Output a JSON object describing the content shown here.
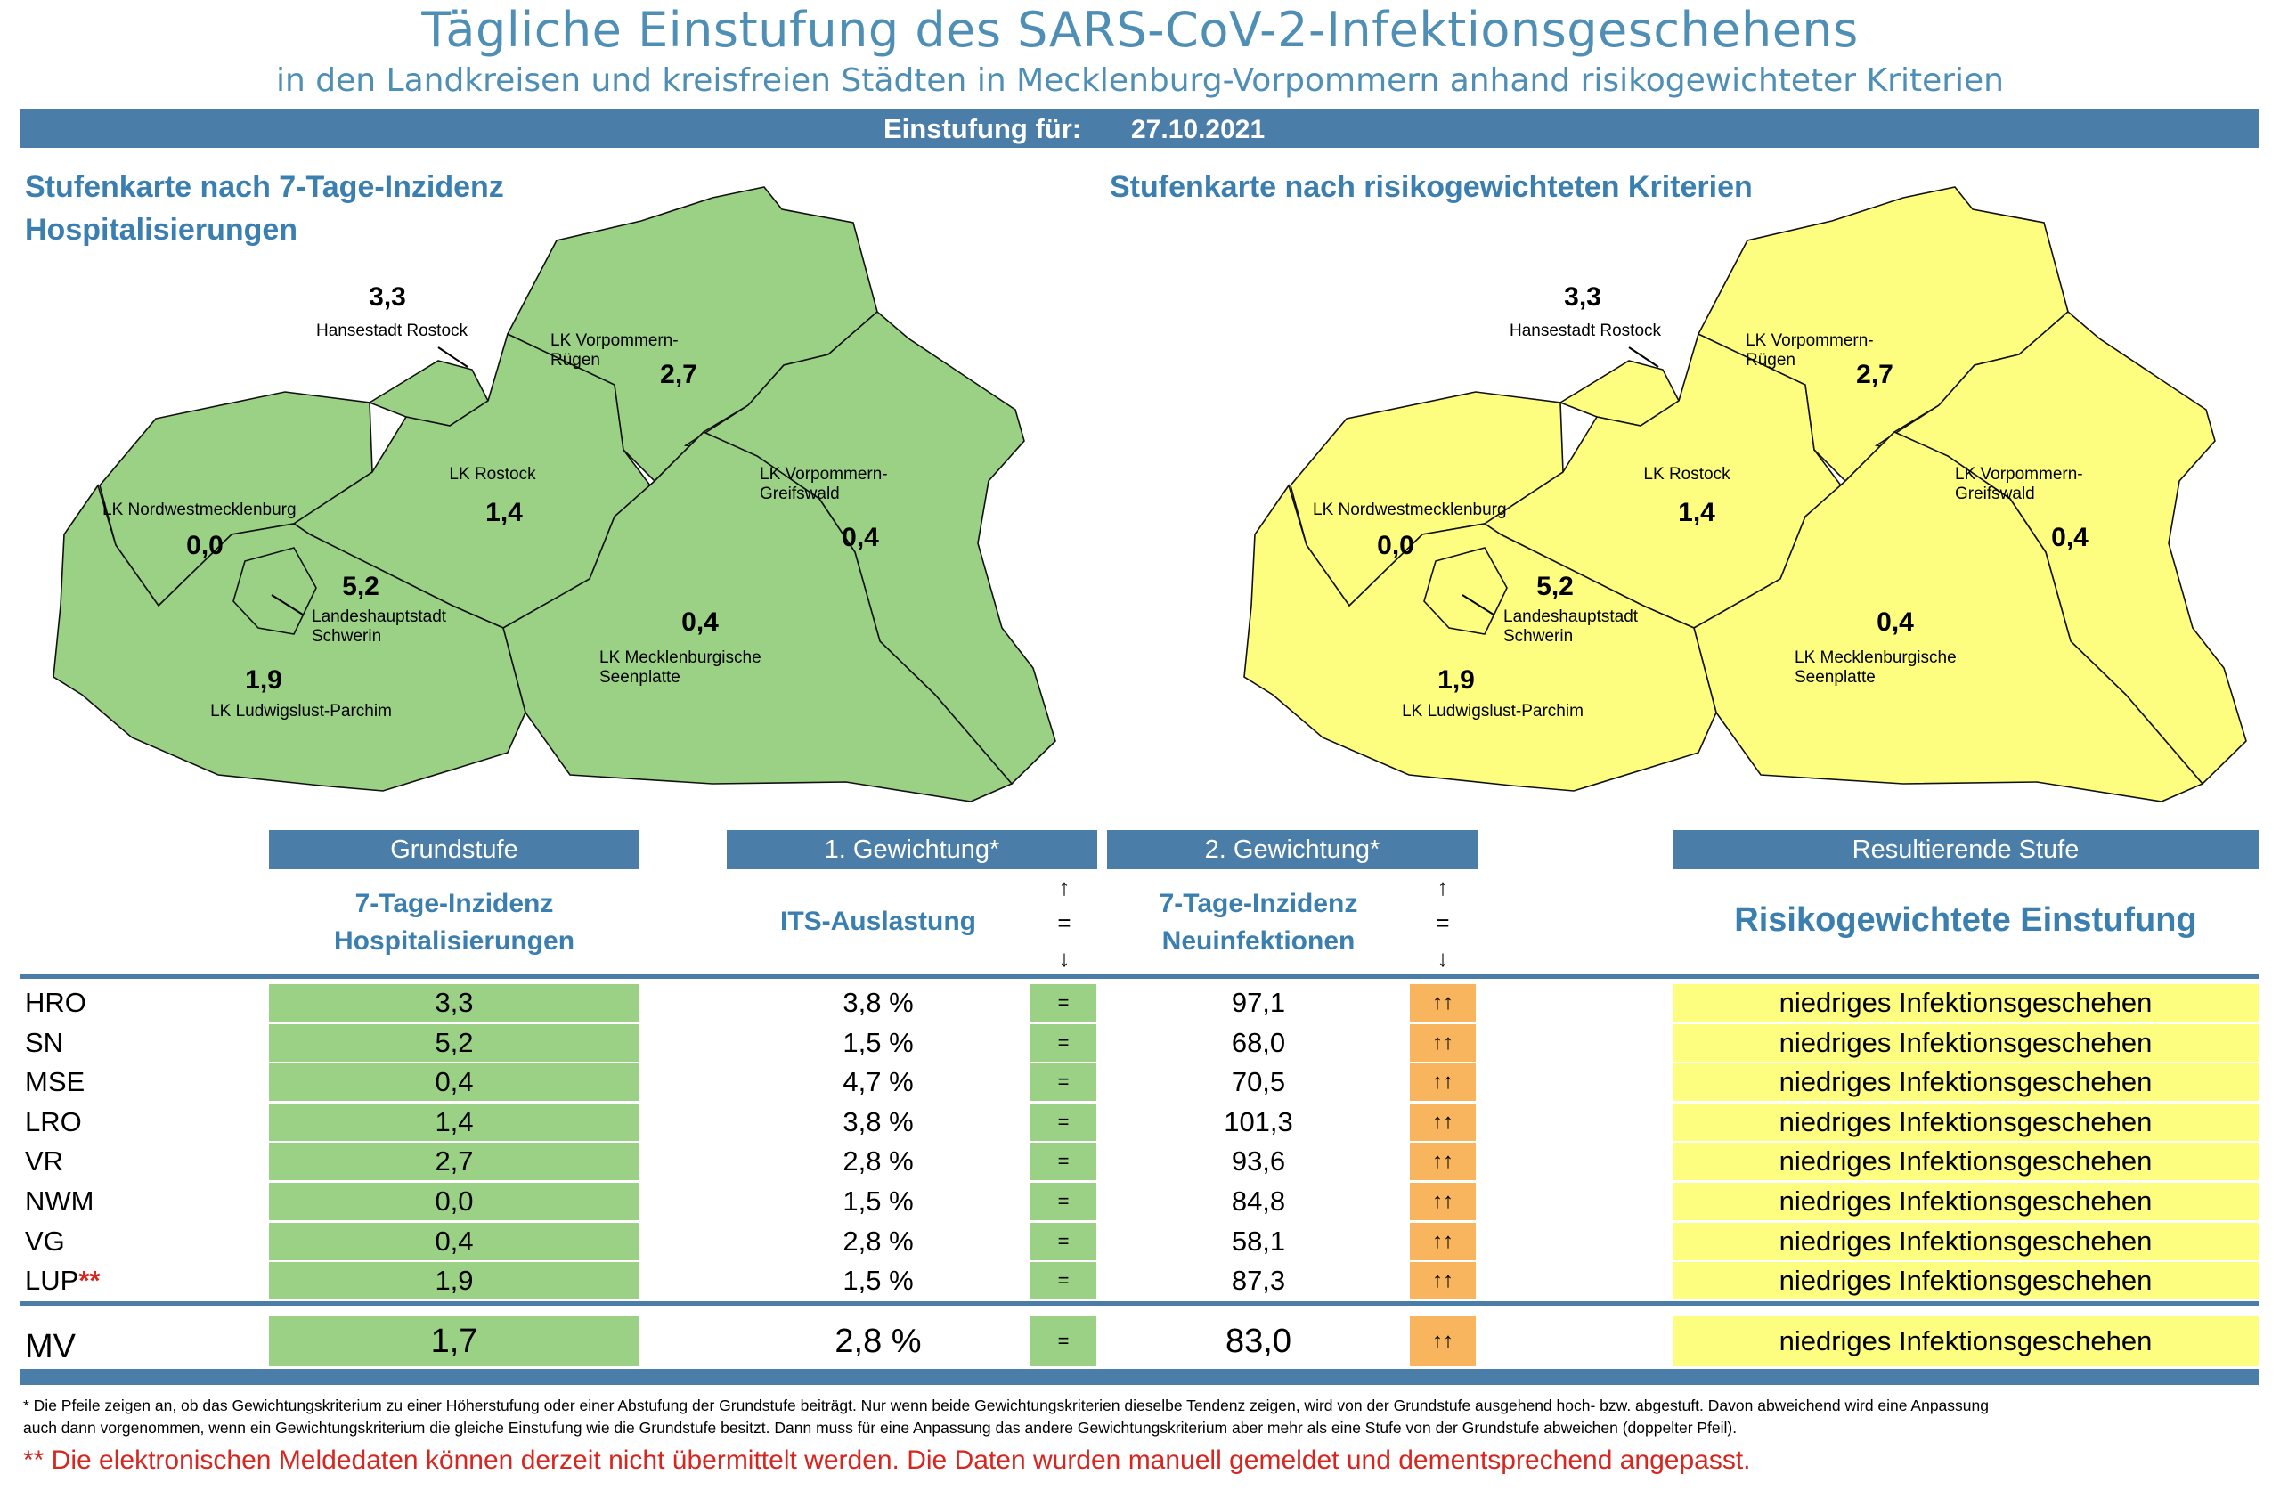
{
  "header": {
    "title": "Tägliche Einstufung des SARS-CoV-2-Infektionsgeschehens",
    "subtitle": "in den Landkreisen und kreisfreien Städten in Mecklenburg-Vorpommern anhand risikogewichteter Kriterien",
    "date_label": "Einstufung für:",
    "date_value": "27.10.2021"
  },
  "map_left": {
    "title_line1": "Stufenkarte nach 7-Tage-Inzidenz",
    "title_line2": "Hospitalisierungen",
    "fill": "#9ad185"
  },
  "map_right": {
    "title_line1": "Stufenkarte nach risikogewichteten Kriterien",
    "fill": "#fdfd80"
  },
  "regions": {
    "hro": {
      "name": "Hansestadt Rostock",
      "value": "3,3"
    },
    "vr": {
      "name_line1": "LK Vorpommern-",
      "name_line2": "Rügen",
      "value": "2,7"
    },
    "lro": {
      "name": "LK Rostock",
      "value": "1,4"
    },
    "vg": {
      "name_line1": "LK Vorpommern-",
      "name_line2": "Greifswald",
      "value": "0,4"
    },
    "nwm": {
      "name": "LK Nordwestmecklenburg",
      "value": "0,0"
    },
    "sn": {
      "name_line1": "Landeshauptstadt",
      "name_line2": "Schwerin",
      "value": "5,2"
    },
    "mse": {
      "name_line1": "LK Mecklenburgische",
      "name_line2": "Seenplatte",
      "value": "0,4"
    },
    "lup": {
      "name": "LK Ludwigslust-Parchim",
      "value": "1,9"
    }
  },
  "table": {
    "headers": {
      "grundstufe": "Grundstufe",
      "gewichtung1": "1. Gewichtung*",
      "gewichtung2": "2. Gewichtung*",
      "resultierend": "Resultierende Stufe"
    },
    "subheaders": {
      "grund_line1": "7-Tage-Inzidenz",
      "grund_line2": "Hospitalisierungen",
      "its": "ITS-Auslastung",
      "neu_line1": "7-Tage-Inzidenz",
      "neu_line2": "Neuinfektionen",
      "risk": "Risikogewichtete Einstufung"
    },
    "arrows": {
      "up": "↑",
      "eq": "=",
      "down": "↓"
    },
    "rows": [
      {
        "code": "HRO",
        "marker": "",
        "grund": "3,3",
        "its": "3,8 %",
        "its_trend": "=",
        "neu": "97,1",
        "neu_trend": "↑↑",
        "result": "niedriges Infektionsgeschehen"
      },
      {
        "code": "SN",
        "marker": "",
        "grund": "5,2",
        "its": "1,5 %",
        "its_trend": "=",
        "neu": "68,0",
        "neu_trend": "↑↑",
        "result": "niedriges Infektionsgeschehen"
      },
      {
        "code": "MSE",
        "marker": "",
        "grund": "0,4",
        "its": "4,7 %",
        "its_trend": "=",
        "neu": "70,5",
        "neu_trend": "↑↑",
        "result": "niedriges Infektionsgeschehen"
      },
      {
        "code": "LRO",
        "marker": "",
        "grund": "1,4",
        "its": "3,8 %",
        "its_trend": "=",
        "neu": "101,3",
        "neu_trend": "↑↑",
        "result": "niedriges Infektionsgeschehen"
      },
      {
        "code": "VR",
        "marker": "",
        "grund": "2,7",
        "its": "2,8 %",
        "its_trend": "=",
        "neu": "93,6",
        "neu_trend": "↑↑",
        "result": "niedriges Infektionsgeschehen"
      },
      {
        "code": "NWM",
        "marker": "",
        "grund": "0,0",
        "its": "1,5 %",
        "its_trend": "=",
        "neu": "84,8",
        "neu_trend": "↑↑",
        "result": "niedriges Infektionsgeschehen"
      },
      {
        "code": "VG",
        "marker": "",
        "grund": "0,4",
        "its": "2,8 %",
        "its_trend": "=",
        "neu": "58,1",
        "neu_trend": "↑↑",
        "result": "niedriges Infektionsgeschehen"
      },
      {
        "code": "LUP",
        "marker": "**",
        "grund": "1,9",
        "its": "1,5 %",
        "its_trend": "=",
        "neu": "87,3",
        "neu_trend": "↑↑",
        "result": "niedriges Infektionsgeschehen"
      }
    ],
    "total": {
      "code": "MV",
      "grund": "1,7",
      "its": "2,8 %",
      "its_trend": "=",
      "neu": "83,0",
      "neu_trend": "↑↑",
      "result": "niedriges Infektionsgeschehen"
    }
  },
  "footer": {
    "note_line1": "* Die Pfeile zeigen an, ob das Gewichtungskriterium zu einer Höherstufung oder einer Abstufung der Grundstufe beiträgt. Nur wenn beide Gewichtungskriterien dieselbe Tendenz zeigen, wird von der Grundstufe ausgehend hoch- bzw. abgestuft.  Davon abweichend wird eine Anpassung",
    "note_line2": "auch dann vorgenommen, wenn ein Gewichtungskriterium die gleiche Einstufung wie die Grundstufe besitzt. Dann muss für eine Anpassung das andere Gewichtungskriterium aber mehr als eine Stufe von der Grundstufe abweichen (doppelter Pfeil).",
    "warning": "** Die elektronischen Meldedaten können derzeit nicht übermittelt werden. Die Daten wurden manuell gemeldet und dementsprechend angepasst."
  },
  "colors": {
    "accent": "#4a7ea8",
    "title": "#4f8fb5",
    "green": "#9ad185",
    "yellow": "#fdfd80",
    "orange": "#f8b55e",
    "red": "#d7261f"
  }
}
